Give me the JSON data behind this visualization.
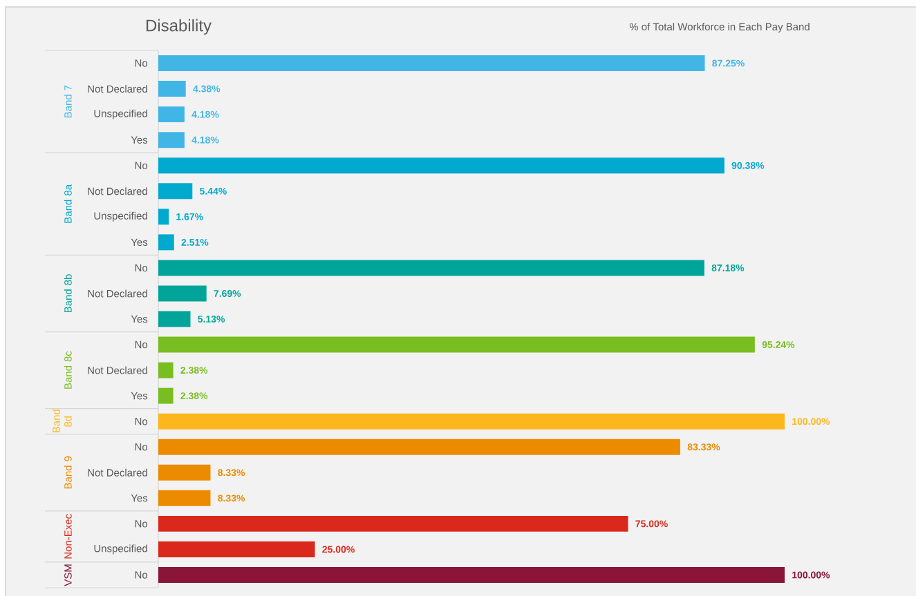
{
  "chart_data": {
    "type": "bar",
    "orientation": "horizontal",
    "title": "Disability",
    "subtitle": "% of Total Workforce in Each Pay Band",
    "categories": [
      "No",
      "Not Declared",
      "Unspecified",
      "Yes",
      "No",
      "Not Declared",
      "Unspecified",
      "Yes",
      "No",
      "Not Declared",
      "Yes",
      "No",
      "Not Declared",
      "Yes",
      "No",
      "No",
      "Not Declared",
      "Yes",
      "No",
      "Unspecified",
      "No"
    ],
    "series": [
      {
        "name": "Band 7",
        "color": "#41b6e6",
        "values": [
          87.25,
          4.38,
          4.18,
          4.18,
          null,
          null,
          null,
          null,
          null,
          null,
          null,
          null,
          null,
          null,
          null,
          null,
          null,
          null,
          null,
          null,
          null
        ],
        "value_labels": [
          "87.25%",
          "4.38%",
          "4.18%",
          "4.18%",
          null,
          null,
          null,
          null,
          null,
          null,
          null,
          null,
          null,
          null,
          null,
          null,
          null,
          null,
          null,
          null,
          null
        ]
      },
      {
        "name": "Band 8a",
        "color": "#00a9ce",
        "values": [
          null,
          null,
          null,
          null,
          90.38,
          5.44,
          1.67,
          2.51,
          null,
          null,
          null,
          null,
          null,
          null,
          null,
          null,
          null,
          null,
          null,
          null,
          null
        ],
        "value_labels": [
          null,
          null,
          null,
          null,
          "90.38%",
          "5.44%",
          "1.67%",
          "2.51%",
          null,
          null,
          null,
          null,
          null,
          null,
          null,
          null,
          null,
          null,
          null,
          null,
          null
        ]
      },
      {
        "name": "Band 8b",
        "color": "#00a499",
        "values": [
          null,
          null,
          null,
          null,
          null,
          null,
          null,
          null,
          87.18,
          7.69,
          5.13,
          null,
          null,
          null,
          null,
          null,
          null,
          null,
          null,
          null,
          null
        ],
        "value_labels": [
          null,
          null,
          null,
          null,
          null,
          null,
          null,
          null,
          "87.18%",
          "7.69%",
          "5.13%",
          null,
          null,
          null,
          null,
          null,
          null,
          null,
          null,
          null,
          null
        ]
      },
      {
        "name": "Band 8c",
        "color": "#78be20",
        "values": [
          null,
          null,
          null,
          null,
          null,
          null,
          null,
          null,
          null,
          null,
          null,
          95.24,
          2.38,
          2.38,
          null,
          null,
          null,
          null,
          null,
          null,
          null
        ],
        "value_labels": [
          null,
          null,
          null,
          null,
          null,
          null,
          null,
          null,
          null,
          null,
          null,
          "95.24%",
          "2.38%",
          "2.38%",
          null,
          null,
          null,
          null,
          null,
          null,
          null
        ]
      },
      {
        "name": "Band 8d",
        "color": "#fdb71e",
        "values": [
          null,
          null,
          null,
          null,
          null,
          null,
          null,
          null,
          null,
          null,
          null,
          null,
          null,
          null,
          100.0,
          null,
          null,
          null,
          null,
          null,
          null
        ],
        "value_labels": [
          null,
          null,
          null,
          null,
          null,
          null,
          null,
          null,
          null,
          null,
          null,
          null,
          null,
          null,
          "100.00%",
          null,
          null,
          null,
          null,
          null,
          null
        ]
      },
      {
        "name": "Band 9",
        "color": "#ed8b00",
        "values": [
          null,
          null,
          null,
          null,
          null,
          null,
          null,
          null,
          null,
          null,
          null,
          null,
          null,
          null,
          null,
          83.33,
          8.33,
          8.33,
          null,
          null,
          null
        ],
        "value_labels": [
          null,
          null,
          null,
          null,
          null,
          null,
          null,
          null,
          null,
          null,
          null,
          null,
          null,
          null,
          null,
          "83.33%",
          "8.33%",
          "8.33%",
          null,
          null,
          null
        ]
      },
      {
        "name": "Non-Exec",
        "color": "#da291c",
        "values": [
          null,
          null,
          null,
          null,
          null,
          null,
          null,
          null,
          null,
          null,
          null,
          null,
          null,
          null,
          null,
          null,
          null,
          null,
          75.0,
          25.0,
          null
        ],
        "value_labels": [
          null,
          null,
          null,
          null,
          null,
          null,
          null,
          null,
          null,
          null,
          null,
          null,
          null,
          null,
          null,
          null,
          null,
          null,
          "75.00%",
          "25.00%",
          null
        ]
      },
      {
        "name": "VSM",
        "color": "#8a1538",
        "values": [
          null,
          null,
          null,
          null,
          null,
          null,
          null,
          null,
          null,
          null,
          null,
          null,
          null,
          null,
          null,
          null,
          null,
          null,
          null,
          null,
          100.0
        ],
        "value_labels": [
          null,
          null,
          null,
          null,
          null,
          null,
          null,
          null,
          null,
          null,
          null,
          null,
          null,
          null,
          null,
          null,
          null,
          null,
          null,
          null,
          "100.00%"
        ]
      }
    ]
  }
}
